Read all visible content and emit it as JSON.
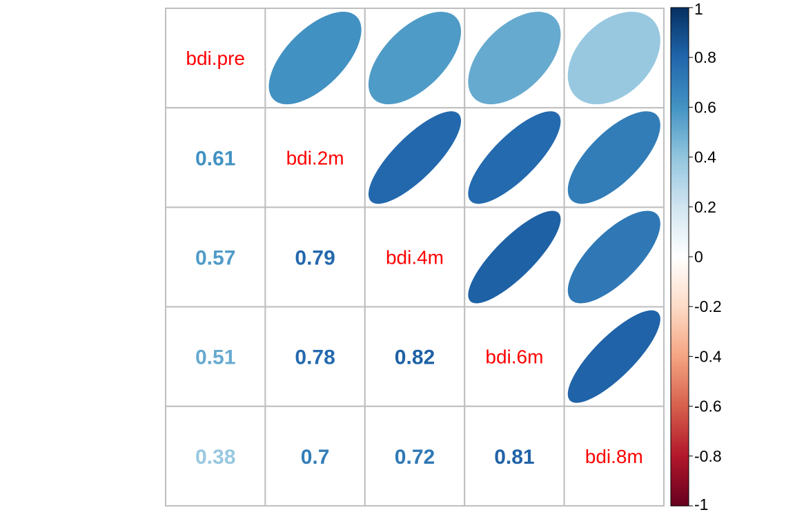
{
  "chart_data": {
    "type": "heatmap",
    "variables": [
      "bdi.pre",
      "bdi.2m",
      "bdi.4m",
      "bdi.6m",
      "bdi.8m"
    ],
    "lower_method": "number",
    "upper_method": "ellipse",
    "diagonal": "variable names",
    "correlations": [
      [
        1,
        0.61,
        0.57,
        0.51,
        0.38
      ],
      [
        0.61,
        1,
        0.79,
        0.78,
        0.7
      ],
      [
        0.57,
        0.79,
        1,
        0.82,
        0.72
      ],
      [
        0.51,
        0.78,
        0.82,
        1,
        0.81
      ],
      [
        0.38,
        0.7,
        0.72,
        0.81,
        1
      ]
    ],
    "lower_labels": [
      [
        "",
        "",
        "",
        "",
        ""
      ],
      [
        "0.61",
        "",
        "",
        "",
        ""
      ],
      [
        "0.57",
        "0.79",
        "",
        "",
        ""
      ],
      [
        "0.51",
        "0.78",
        "0.82",
        "",
        ""
      ],
      [
        "0.38",
        "0.7",
        "0.72",
        "0.81",
        ""
      ]
    ],
    "colorbar": {
      "range": [
        -1,
        1
      ],
      "ticks": [
        "1",
        "0.8",
        "0.6",
        "0.4",
        "0.2",
        "0",
        "-0.2",
        "-0.4",
        "-0.6",
        "-0.8",
        "-1"
      ]
    },
    "colors": {
      "diagonal_label": "#ff0000",
      "grid": "#bebebe",
      "negative_end": "#67001f",
      "positive_end": "#053061",
      "midpoint": "#ffffff"
    },
    "grid": true,
    "legend_position": "right"
  }
}
